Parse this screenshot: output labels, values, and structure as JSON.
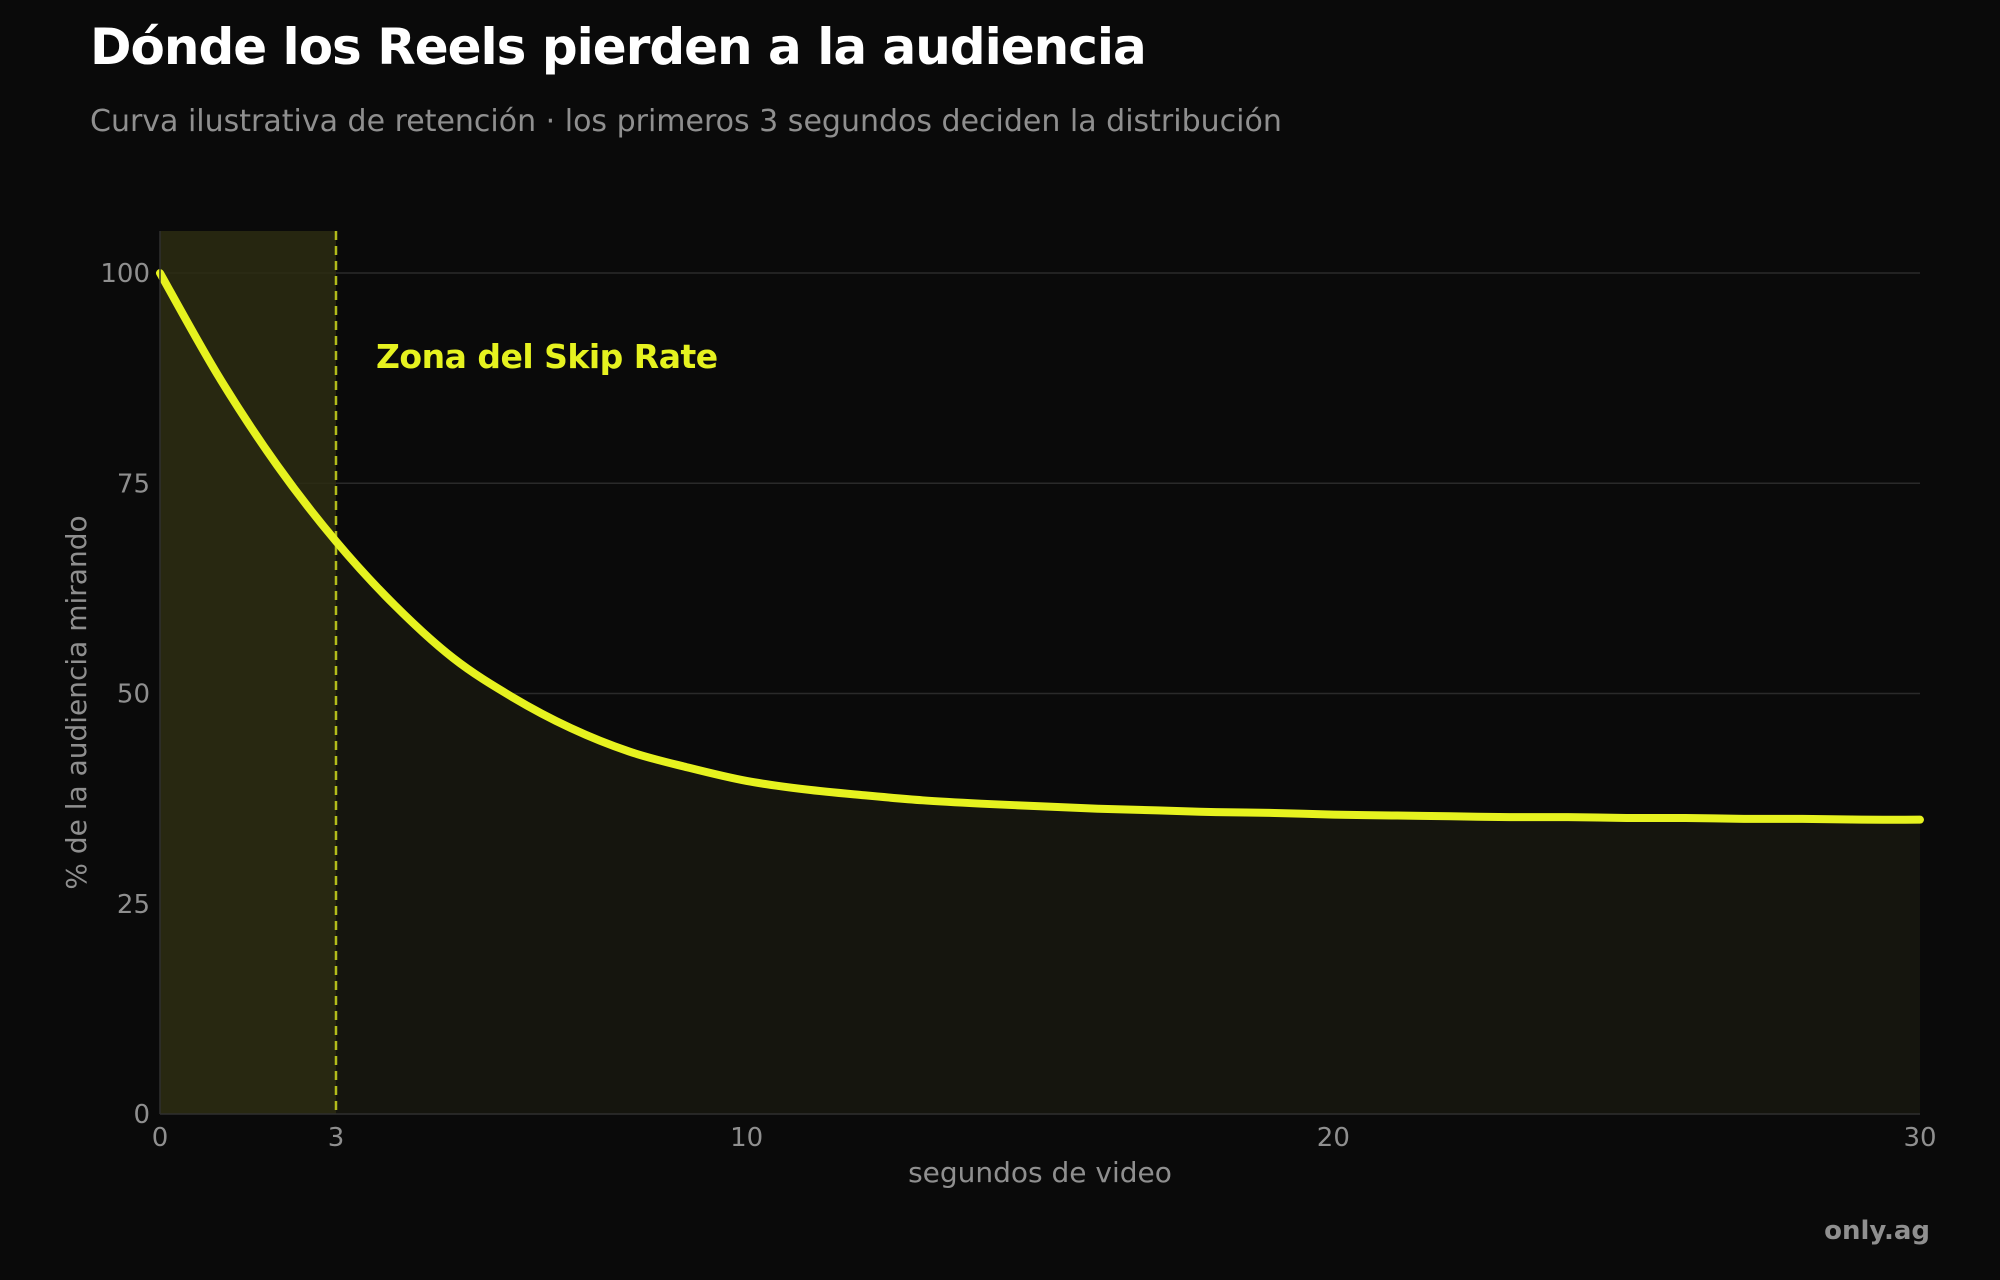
{
  "header": {
    "title": "Dónde los Reels pierden a la audiencia",
    "subtitle": "Curva ilustrativa de retención · los primeros 3 segundos deciden la distribución"
  },
  "footer": {
    "brand": "only.ag"
  },
  "colors": {
    "background": "#0a0a0a",
    "accent": "#e6f21f",
    "text_muted": "#8f8f8f",
    "grid": "#2a2a2a",
    "skip_zone_fill": "#2b2b12",
    "area_fill": "#15150e"
  },
  "chart_data": {
    "type": "line",
    "title": "Dónde los Reels pierden a la audiencia",
    "subtitle": "Curva ilustrativa de retención · los primeros 3 segundos deciden la distribución",
    "xlabel": "segundos de video",
    "ylabel": "% de la audiencia mirando",
    "xlim": [
      0,
      30
    ],
    "ylim": [
      0,
      105
    ],
    "x_ticks": [
      0,
      3,
      10,
      20,
      30
    ],
    "y_ticks": [
      0,
      25,
      50,
      75,
      100
    ],
    "grid": "horizontal",
    "area_under_curve": true,
    "series": [
      {
        "x": [
          0,
          1,
          2,
          3,
          4,
          5,
          6,
          7,
          8,
          9,
          10,
          11,
          12,
          13,
          14,
          15,
          16,
          17,
          18,
          19,
          20,
          21,
          22,
          23,
          24,
          25,
          26,
          27,
          28,
          29,
          30
        ],
        "y": [
          100,
          87.7,
          77.1,
          68.1,
          60.5,
          54.2,
          49.6,
          45.9,
          43.1,
          41.2,
          39.6,
          38.6,
          37.9,
          37.3,
          36.9,
          36.6,
          36.3,
          36.1,
          35.9,
          35.8,
          35.6,
          35.5,
          35.4,
          35.3,
          35.3,
          35.2,
          35.2,
          35.1,
          35.1,
          35.0,
          35.0
        ]
      }
    ],
    "annotations": [
      {
        "type": "shaded_region",
        "x_start": 0,
        "x_end": 3,
        "label": "Zona del Skip Rate"
      },
      {
        "type": "vertical_line",
        "x": 3,
        "style": "dashed"
      }
    ]
  }
}
